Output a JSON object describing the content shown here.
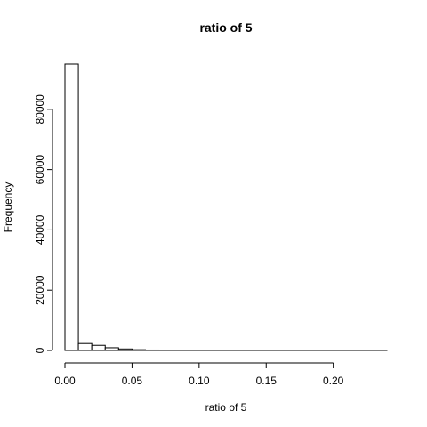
{
  "chart_data": {
    "type": "histogram",
    "title": "ratio of 5",
    "x_label": "ratio of 5",
    "y_label": "Frequency",
    "bins": [
      0,
      0.01,
      0.02,
      0.03,
      0.04,
      0.05,
      0.06,
      0.07,
      0.08,
      0.09,
      0.1,
      0.11,
      0.12,
      0.13,
      0.14,
      0.15,
      0.16,
      0.17,
      0.18,
      0.19,
      0.2,
      0.21,
      0.22,
      0.23,
      0.24
    ],
    "counts": [
      95000,
      2300,
      1700,
      900,
      500,
      250,
      150,
      100,
      80,
      60,
      50,
      40,
      30,
      25,
      20,
      15,
      12,
      10,
      8,
      6,
      5,
      4,
      3,
      2
    ],
    "color": "#ffffff",
    "xlim": [
      0,
      0.24
    ],
    "xticks": [
      {
        "value": 0,
        "label": "0.00"
      },
      {
        "value": 0.05,
        "label": "0.05"
      },
      {
        "value": 0.1,
        "label": "0.10"
      },
      {
        "value": 0.15,
        "label": "0.15"
      },
      {
        "value": 0.2,
        "label": "0.20"
      }
    ],
    "ylim": [
      0,
      95000
    ],
    "yticks": [
      0,
      20000,
      40000,
      60000,
      80000
    ]
  }
}
